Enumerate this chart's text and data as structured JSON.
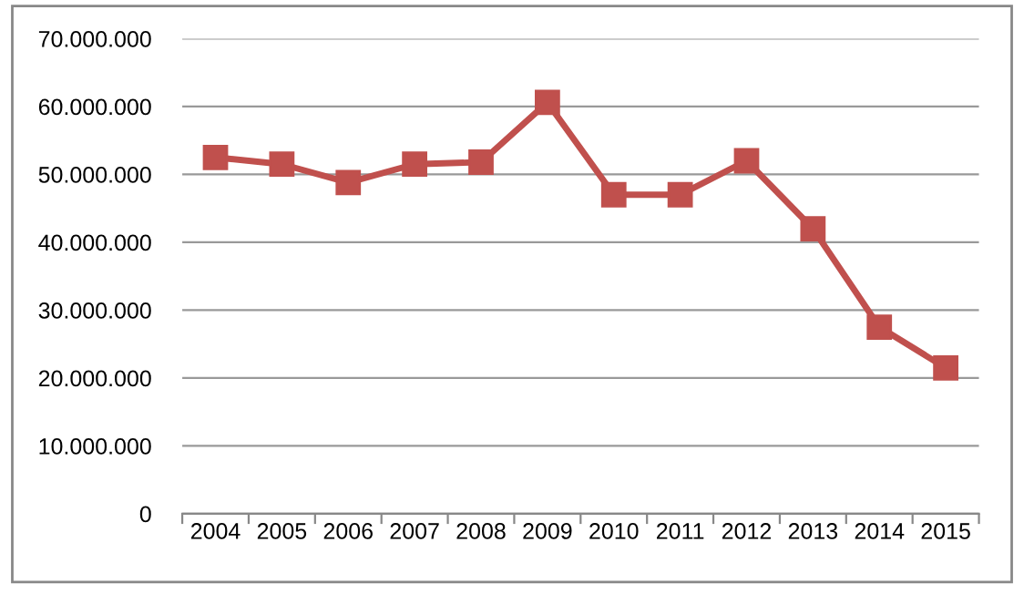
{
  "chart_data": {
    "type": "line",
    "categories": [
      "2004",
      "2005",
      "2006",
      "2007",
      "2008",
      "2009",
      "2010",
      "2011",
      "2012",
      "2013",
      "2014",
      "2015"
    ],
    "series": [
      {
        "color": "#c0504d",
        "values": [
          52500000,
          51500000,
          48800000,
          51500000,
          51800000,
          60600000,
          47000000,
          47000000,
          52000000,
          42000000,
          27500000,
          21500000
        ]
      }
    ],
    "ylim": [
      0,
      70000000
    ],
    "yticks": [
      {
        "value": 0,
        "label": "0"
      },
      {
        "value": 10000000,
        "label": "10.000.000"
      },
      {
        "value": 20000000,
        "label": "20.000.000"
      },
      {
        "value": 30000000,
        "label": "30.000.000"
      },
      {
        "value": 40000000,
        "label": "40.000.000"
      },
      {
        "value": 50000000,
        "label": "50.000.000"
      },
      {
        "value": 60000000,
        "label": "60.000.000"
      },
      {
        "value": 70000000,
        "label": "70.000.000"
      }
    ],
    "grid": "y",
    "marker": "square",
    "line_style": "solid",
    "legend": false
  }
}
